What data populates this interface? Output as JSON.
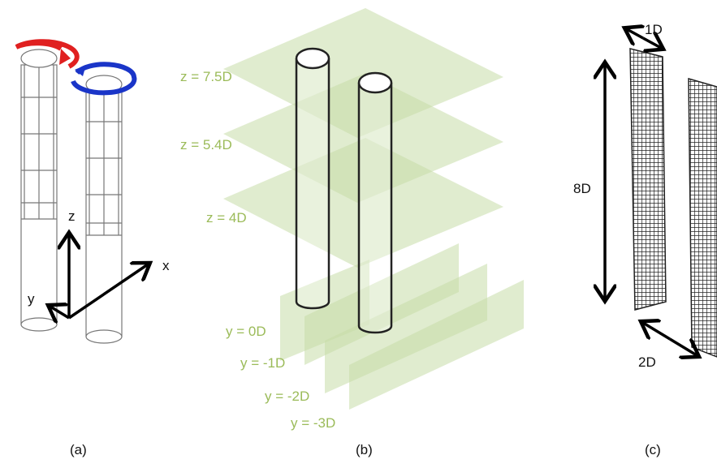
{
  "panels": [
    {
      "label": "(a)",
      "axes": [
        "z",
        "y",
        "x"
      ]
    },
    {
      "label": "(b)",
      "planes": [
        "z = 7.5D",
        "z = 5.4D",
        "z = 4D",
        "y = 0D",
        "y = -1D",
        "y = -2D",
        "y = -3D"
      ]
    },
    {
      "label": "(c)",
      "dimensions": [
        "1D",
        "8D",
        "2D"
      ]
    }
  ]
}
